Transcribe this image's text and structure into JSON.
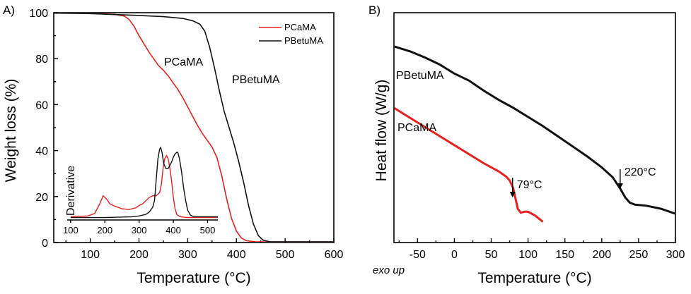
{
  "chart_data": [
    {
      "panel_label": "A)",
      "type": "line",
      "xlabel": "Temperature (°C)",
      "ylabel": "Weight loss (%)",
      "xlim": [
        25,
        600
      ],
      "ylim": [
        0,
        100
      ],
      "xticks": [
        100,
        200,
        300,
        400,
        500,
        600
      ],
      "yticks": [
        0,
        20,
        40,
        60,
        80,
        100
      ],
      "legend": {
        "placement": "top-right",
        "entries": [
          "PCaMA",
          "PBetuMA"
        ]
      },
      "series": [
        {
          "name": "PCaMA",
          "color": "#e8201e",
          "points": [
            [
              25,
              100
            ],
            [
              100,
              99.7
            ],
            [
              150,
              99.3
            ],
            [
              170,
              98.5
            ],
            [
              180,
              97
            ],
            [
              190,
              94
            ],
            [
              200,
              90
            ],
            [
              210,
              86.5
            ],
            [
              220,
              83
            ],
            [
              230,
              80
            ],
            [
              240,
              77
            ],
            [
              250,
              75
            ],
            [
              260,
              72.5
            ],
            [
              270,
              69.5
            ],
            [
              280,
              66.5
            ],
            [
              290,
              63
            ],
            [
              300,
              59
            ],
            [
              310,
              55
            ],
            [
              320,
              51
            ],
            [
              330,
              47.5
            ],
            [
              340,
              44.5
            ],
            [
              350,
              41.5
            ],
            [
              360,
              37
            ],
            [
              370,
              29
            ],
            [
              380,
              19
            ],
            [
              390,
              10.5
            ],
            [
              400,
              5
            ],
            [
              410,
              2
            ],
            [
              420,
              0.8
            ],
            [
              440,
              0.3
            ],
            [
              600,
              0.3
            ]
          ]
        },
        {
          "name": "PBetuMA",
          "color": "#111111",
          "points": [
            [
              25,
              99.8
            ],
            [
              100,
              99.6
            ],
            [
              200,
              98.8
            ],
            [
              250,
              98.3
            ],
            [
              290,
              97.5
            ],
            [
              310,
              96.5
            ],
            [
              325,
              95
            ],
            [
              335,
              92
            ],
            [
              345,
              85
            ],
            [
              355,
              76
            ],
            [
              365,
              66
            ],
            [
              375,
              57
            ],
            [
              385,
              50
            ],
            [
              395,
              43
            ],
            [
              405,
              35
            ],
            [
              415,
              26
            ],
            [
              425,
              16
            ],
            [
              435,
              8
            ],
            [
              445,
              3
            ],
            [
              455,
              1
            ],
            [
              470,
              0.3
            ],
            [
              600,
              0.3
            ]
          ]
        }
      ],
      "annotations": [
        {
          "text": "PCaMA",
          "color": "#e8201e"
        },
        {
          "text": "PBetuMA",
          "color": "#111111"
        }
      ],
      "inset": {
        "ylabel": "Derivative",
        "xlim": [
          90,
          530
        ],
        "ylim": [
          0,
          60
        ],
        "xticks": [
          100,
          200,
          300,
          400,
          500
        ],
        "series": [
          {
            "name": "PCaMA",
            "color": "#e8201e",
            "points": [
              [
                100,
                2
              ],
              [
                150,
                2.5
              ],
              [
                170,
                4
              ],
              [
                185,
                10
              ],
              [
                195,
                15
              ],
              [
                205,
                13
              ],
              [
                215,
                10
              ],
              [
                230,
                8.5
              ],
              [
                250,
                7
              ],
              [
                270,
                6.5
              ],
              [
                290,
                7.5
              ],
              [
                300,
                9
              ],
              [
                310,
                10
              ],
              [
                320,
                12
              ],
              [
                330,
                14
              ],
              [
                340,
                15
              ],
              [
                350,
                15
              ],
              [
                360,
                17
              ],
              [
                365,
                22
              ],
              [
                370,
                32
              ],
              [
                375,
                38
              ],
              [
                380,
                40
              ],
              [
                385,
                38
              ],
              [
                390,
                32
              ],
              [
                395,
                24
              ],
              [
                400,
                14
              ],
              [
                405,
                7
              ],
              [
                410,
                3.5
              ],
              [
                420,
                2
              ],
              [
                440,
                1.5
              ],
              [
                530,
                1.5
              ]
            ]
          },
          {
            "name": "PBetuMA",
            "color": "#111111",
            "points": [
              [
                100,
                1.5
              ],
              [
                200,
                1.5
              ],
              [
                280,
                2
              ],
              [
                300,
                2.5
              ],
              [
                320,
                3.5
              ],
              [
                330,
                5
              ],
              [
                340,
                8
              ],
              [
                345,
                12
              ],
              [
                350,
                25
              ],
              [
                355,
                38
              ],
              [
                360,
                44
              ],
              [
                363,
                45
              ],
              [
                367,
                42
              ],
              [
                372,
                35
              ],
              [
                378,
                32
              ],
              [
                385,
                32
              ],
              [
                390,
                34
              ],
              [
                395,
                36
              ],
              [
                400,
                39
              ],
              [
                405,
                41
              ],
              [
                410,
                42
              ],
              [
                413,
                42
              ],
              [
                418,
                38
              ],
              [
                424,
                30
              ],
              [
                430,
                20
              ],
              [
                436,
                12
              ],
              [
                442,
                6
              ],
              [
                450,
                3
              ],
              [
                460,
                2
              ],
              [
                530,
                2
              ]
            ]
          }
        ]
      }
    },
    {
      "panel_label": "B)",
      "type": "line",
      "xlabel": "Temperature (°C)",
      "ylabel": "Heat flow (W/g)",
      "xlim": [
        -82,
        300
      ],
      "ylim": [
        0,
        100
      ],
      "xticks": [
        -50,
        0,
        50,
        100,
        150,
        200,
        250,
        300
      ],
      "y_tick_labels_shown": false,
      "bottom_note": "exo up",
      "series": [
        {
          "name": "PBetuMA",
          "color": "#111111",
          "points": [
            [
              -82,
              87.5
            ],
            [
              -60,
              85
            ],
            [
              -40,
              82
            ],
            [
              -20,
              78.5
            ],
            [
              0,
              74
            ],
            [
              20,
              70.5
            ],
            [
              40,
              65.5
            ],
            [
              60,
              61
            ],
            [
              80,
              57
            ],
            [
              100,
              52.5
            ],
            [
              120,
              48
            ],
            [
              140,
              43
            ],
            [
              160,
              38
            ],
            [
              180,
              33
            ],
            [
              200,
              27.5
            ],
            [
              215,
              22.5
            ],
            [
              225,
              17
            ],
            [
              232,
              12.5
            ],
            [
              238,
              10
            ],
            [
              245,
              9
            ],
            [
              260,
              8.5
            ],
            [
              280,
              7
            ],
            [
              300,
              4.5
            ]
          ]
        },
        {
          "name": "PCaMA",
          "color": "#e8201e",
          "points": [
            [
              -82,
              57
            ],
            [
              -60,
              52
            ],
            [
              -40,
              47.5
            ],
            [
              -20,
              43
            ],
            [
              0,
              38.5
            ],
            [
              20,
              34
            ],
            [
              40,
              29.5
            ],
            [
              60,
              25.5
            ],
            [
              70,
              23
            ],
            [
              75,
              21
            ],
            [
              80,
              17
            ],
            [
              83,
              12
            ],
            [
              86,
              7
            ],
            [
              90,
              5
            ],
            [
              95,
              5.5
            ],
            [
              100,
              5.5
            ],
            [
              110,
              3.5
            ],
            [
              120,
              0.5
            ]
          ]
        }
      ],
      "annotations": [
        {
          "text": "PBetuMA",
          "color": "#111111"
        },
        {
          "text": "PCaMA",
          "color": "#e8201e"
        },
        {
          "text": "79°C",
          "color": "#111111",
          "arrow_x": 79
        },
        {
          "text": "220°C",
          "color": "#111111",
          "arrow_x": 225
        }
      ]
    }
  ]
}
